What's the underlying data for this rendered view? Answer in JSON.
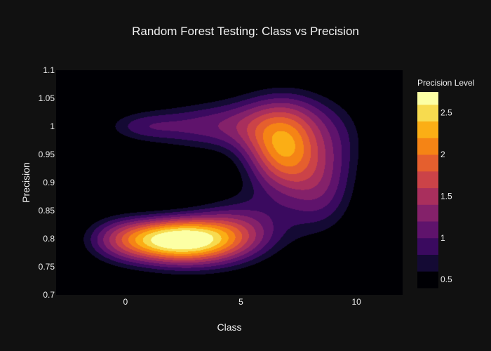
{
  "colors": {
    "page_background": "#111111",
    "plot_background": "#000000",
    "text": "#f0f0f0",
    "colorscale": [
      "#000004",
      "#160b39",
      "#420a68",
      "#6a176e",
      "#932667",
      "#bc3754",
      "#dd513a",
      "#f37819",
      "#fca50a",
      "#f6d746",
      "#fcffa4"
    ]
  },
  "chart_data": {
    "type": "contour",
    "title": "Random Forest Testing: Class vs Precision",
    "xlabel": "Class",
    "ylabel": "Precision",
    "xlim": [
      -3,
      12
    ],
    "ylim": [
      0.7,
      1.1
    ],
    "x_ticks": [
      {
        "value": 0,
        "label": "0"
      },
      {
        "value": 5,
        "label": "5"
      },
      {
        "value": 10,
        "label": "10"
      }
    ],
    "y_ticks": [
      {
        "value": 0.7,
        "label": "0.7"
      },
      {
        "value": 0.75,
        "label": "0.75"
      },
      {
        "value": 0.8,
        "label": "0.8"
      },
      {
        "value": 0.85,
        "label": "0.85"
      },
      {
        "value": 0.9,
        "label": "0.9"
      },
      {
        "value": 0.95,
        "label": "0.95"
      },
      {
        "value": 1,
        "label": "1"
      },
      {
        "value": 1.05,
        "label": "1.05"
      },
      {
        "value": 1.1,
        "label": "1.1"
      }
    ],
    "grid": false,
    "colorbar": {
      "title": "Precision Level",
      "range": [
        0.4,
        2.75
      ],
      "level_step": 0.2,
      "ticks": [
        {
          "value": 0.5,
          "label": "0.5"
        },
        {
          "value": 1,
          "label": "1"
        },
        {
          "value": 1.5,
          "label": "1.5"
        },
        {
          "value": 2,
          "label": "2"
        },
        {
          "value": 2.5,
          "label": "2.5"
        }
      ]
    },
    "density_clusters": [
      {
        "x": 2.2,
        "y": 0.8,
        "sx": 1.9,
        "sy": 0.028,
        "weight": 2.55
      },
      {
        "x": 6.8,
        "y": 0.95,
        "sx": 1.2,
        "sy": 0.05,
        "weight": 1.7
      },
      {
        "x": 3.5,
        "y": 1.0,
        "sx": 2.0,
        "sy": 0.035,
        "weight": 0.95
      },
      {
        "x": 0.5,
        "y": 1.0,
        "sx": 1.3,
        "sy": 0.022,
        "weight": 0.6
      },
      {
        "x": 5.0,
        "y": 0.82,
        "sx": 1.6,
        "sy": 0.045,
        "weight": 0.95
      },
      {
        "x": 8.5,
        "y": 0.88,
        "sx": 1.2,
        "sy": 0.06,
        "weight": 0.9
      },
      {
        "x": 7.0,
        "y": 1.02,
        "sx": 1.8,
        "sy": 0.045,
        "weight": 0.85
      },
      {
        "x": -0.5,
        "y": 0.8,
        "sx": 1.2,
        "sy": 0.035,
        "weight": 0.55
      },
      {
        "x": 2.5,
        "y": 0.76,
        "sx": 2.0,
        "sy": 0.03,
        "weight": 0.5
      },
      {
        "x": 9.5,
        "y": 0.97,
        "sx": 1.0,
        "sy": 0.05,
        "weight": 0.4
      }
    ]
  }
}
